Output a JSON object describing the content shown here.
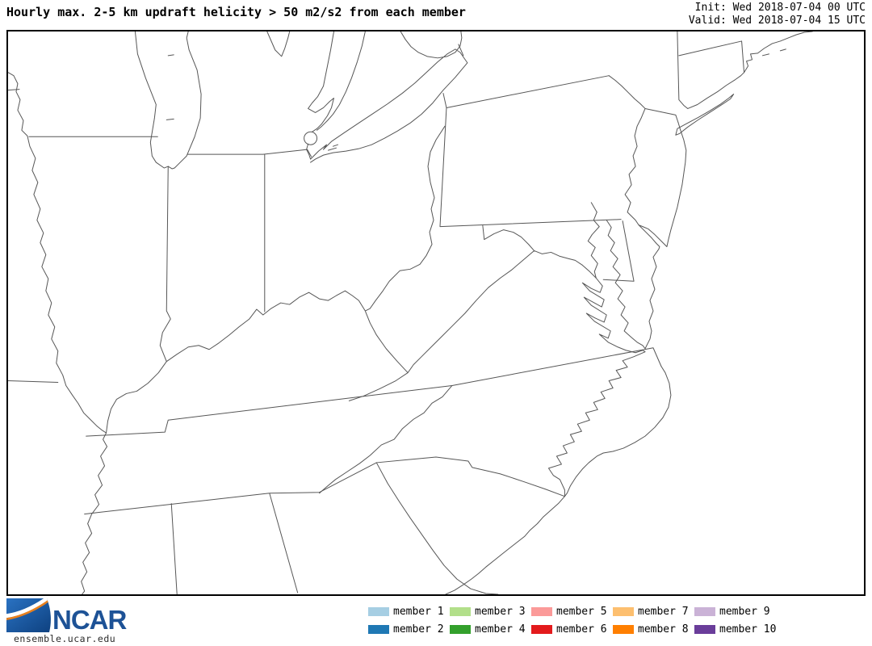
{
  "header": {
    "title": "Hourly max. 2-5 km updraft helicity > 50 m2/s2 from each member",
    "init_label": "Init: Wed 2018-07-04 00 UTC",
    "valid_label": "Valid: Wed 2018-07-04 15 UTC"
  },
  "map": {
    "frame_color": "#000000",
    "outline_color": "#565656",
    "background": "#ffffff"
  },
  "footer": {
    "logo_text": "NCAR",
    "logo_blue": "#1d5296",
    "logo_swoosh_orange": "#e8801d",
    "site_url": "ensemble.ucar.edu",
    "legend": {
      "members": [
        {
          "label": "member 1",
          "color": "#a6cee3"
        },
        {
          "label": "member 2",
          "color": "#1f78b4"
        },
        {
          "label": "member 3",
          "color": "#b2df8a"
        },
        {
          "label": "member 4",
          "color": "#33a02c"
        },
        {
          "label": "member 5",
          "color": "#fb9a99"
        },
        {
          "label": "member 6",
          "color": "#e31a1c"
        },
        {
          "label": "member 7",
          "color": "#fdbf6f"
        },
        {
          "label": "member 8",
          "color": "#ff7f00"
        },
        {
          "label": "member 9",
          "color": "#cab2d6"
        },
        {
          "label": "member 10",
          "color": "#6a3d9a"
        }
      ]
    }
  }
}
